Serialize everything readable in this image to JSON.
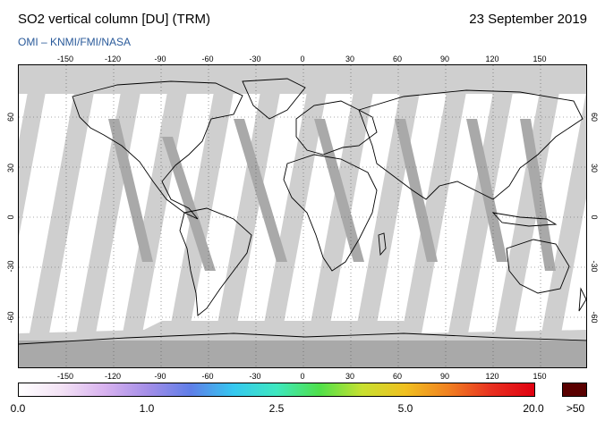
{
  "header": {
    "title": "SO2 vertical column [DU] (TRM)",
    "date": "23 September 2019",
    "source": "OMI  –  KNMI/FMI/NASA"
  },
  "map": {
    "lon_ticks_top": [
      "-150",
      "-120",
      "-90",
      "-60",
      "-30",
      "0",
      "30",
      "60",
      "90",
      "120",
      "150"
    ],
    "lon_ticks_bottom": [
      "-150",
      "-120",
      "-90",
      "-60",
      "-30",
      "0",
      "30",
      "60",
      "90",
      "120",
      "150"
    ],
    "lat_ticks": [
      "60",
      "30",
      "0",
      "-30",
      "-60"
    ],
    "colors": {
      "no_data": "#cfcfcf",
      "orbit_overlap": "#a9a9a9",
      "land_outline": "#000000",
      "background": "#ffffff"
    }
  },
  "colorbar": {
    "labels": [
      "0.0",
      "1.0",
      "2.5",
      "5.0",
      "20.0"
    ],
    "over_label": ">50",
    "over_color": "#5a0000",
    "gradient": [
      "#ffffff",
      "#f3e2f5",
      "#d8b2ef",
      "#a48ee8",
      "#5f7ee8",
      "#35c8f0",
      "#3ee8c0",
      "#4fe04a",
      "#c8e030",
      "#f0c020",
      "#f08020",
      "#e83020",
      "#e00010"
    ]
  }
}
